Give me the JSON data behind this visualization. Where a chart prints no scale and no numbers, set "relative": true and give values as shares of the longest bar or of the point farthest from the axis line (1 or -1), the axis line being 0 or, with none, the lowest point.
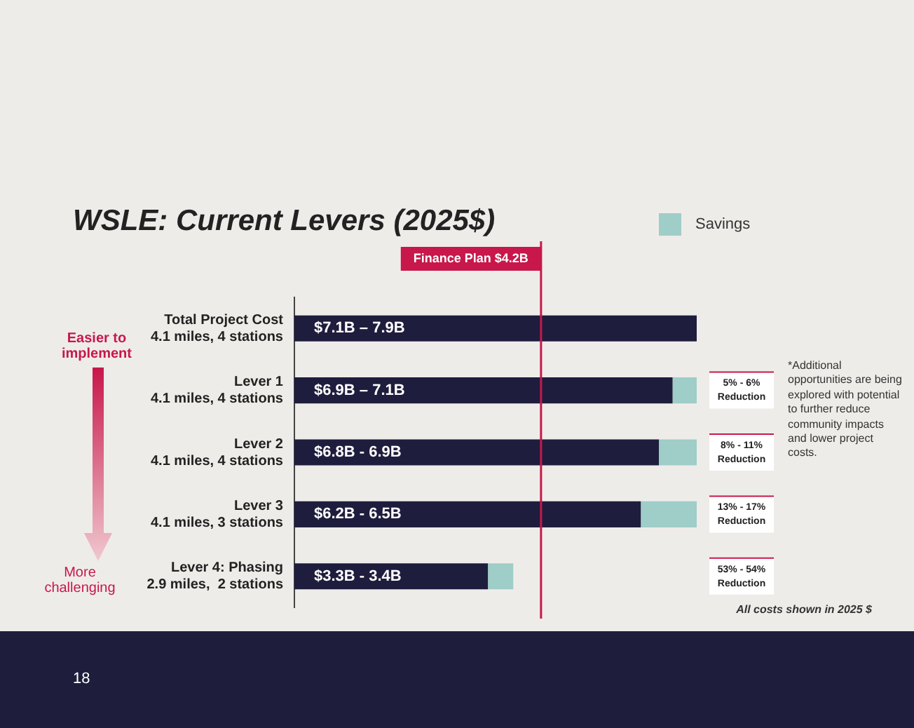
{
  "chart_data": {
    "type": "bar",
    "orientation": "horizontal",
    "stacked": true,
    "relative": true,
    "title": "WSLE: Current Levers (2025$)",
    "categories": [
      "Total Project Cost\n4.1 miles, 4 stations",
      "Lever 1\n4.1 miles, 4 stations",
      "Lever 2\n4.1 miles, 4 stations",
      "Lever 3\n4.1 miles, 3 stations",
      "Lever 4: Phasing\n2.9 miles,  2 stations"
    ],
    "tick_labels": "y",
    "series": [
      {
        "color": "#1f1d3d",
        "values": [
          1,
          0.94,
          0.906,
          0.861,
          0.481
        ]
      },
      {
        "name": "Savings",
        "color": "#9fcdc8",
        "values": [
          null,
          0.06,
          0.094,
          0.139,
          0.063
        ]
      }
    ],
    "ref_lines": [
      {
        "axis": "x",
        "value": 0.613,
        "label": "Finance Plan $4.2B",
        "color": "#c8174a"
      }
    ],
    "legend": "top right",
    "annotations": [
      "Easier to implement",
      "More challenging",
      "*Additional opportunities are being explored with potential to further reduce community impacts and lower project costs.",
      "All costs shown in 2025 $",
      "18",
      "$7.1B – 7.9B",
      "$6.9B – 7.1B",
      "$6.8B - 6.9B",
      "$6.2B - 6.5B",
      "$3.3B - 3.4B",
      "5% - 6%\nReduction",
      "8% - 11%\nReduction",
      "13% - 17%\nReduction",
      "53% - 54%\nReduction"
    ]
  }
}
